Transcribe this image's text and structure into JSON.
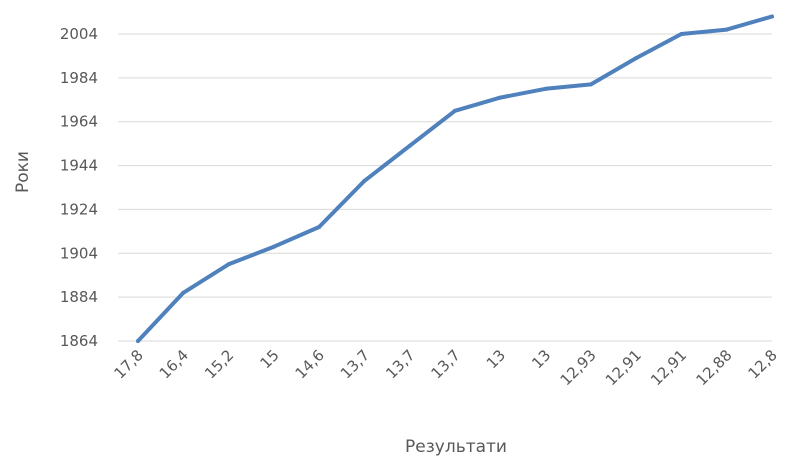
{
  "chart_data": {
    "type": "line",
    "title": "",
    "xlabel": "Результати",
    "ylabel": "Роки",
    "categories": [
      "17,8",
      "16,4",
      "15,2",
      "15",
      "14,6",
      "13,7",
      "13,7",
      "13,7",
      "13",
      "13",
      "12,93",
      "12,91",
      "12,91",
      "12,88",
      "12,8"
    ],
    "series": [
      {
        "values": [
          1864,
          1886,
          1899,
          1907,
          1916,
          1937,
          1953,
          1969,
          1975,
          1979,
          1981,
          1993,
          2004,
          2006,
          2012
        ],
        "color": "#4f81bd"
      }
    ],
    "ylim": [
      1864,
      2004
    ],
    "yticks": [
      1864,
      1884,
      1904,
      1924,
      1944,
      1964,
      1984,
      2004
    ],
    "grid": true,
    "legend": "none"
  }
}
